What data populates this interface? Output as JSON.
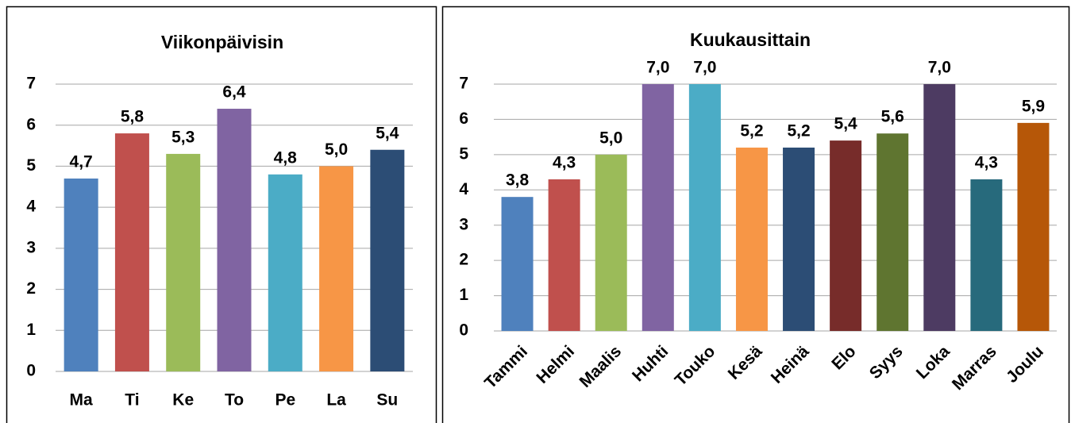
{
  "chart_data": [
    {
      "type": "bar",
      "title": "Viikonpäivisin",
      "categories": [
        "Ma",
        "Ti",
        "Ke",
        "To",
        "Pe",
        "La",
        "Su"
      ],
      "values": [
        4.7,
        5.8,
        5.3,
        6.4,
        4.8,
        5.0,
        5.4
      ],
      "value_labels": [
        "4,7",
        "5,8",
        "5,3",
        "6,4",
        "4,8",
        "5,0",
        "5,4"
      ],
      "colors": [
        "#4f81bd",
        "#c0504d",
        "#9bbb59",
        "#8064a2",
        "#4bacc6",
        "#f79646",
        "#2c4d75"
      ],
      "ylim": [
        0,
        7
      ],
      "yticks": [
        0,
        1,
        2,
        3,
        4,
        5,
        6,
        7
      ],
      "grid": true
    },
    {
      "type": "bar",
      "title": "Kuukausittain",
      "categories": [
        "Tammi",
        "Helmi",
        "Maalis",
        "Huhti",
        "Touko",
        "Kesä",
        "Heinä",
        "Elo",
        "Syys",
        "Loka",
        "Marras",
        "Joulu"
      ],
      "values": [
        3.8,
        4.3,
        5.0,
        7.0,
        7.0,
        5.2,
        5.2,
        5.4,
        5.6,
        7.0,
        4.3,
        5.9
      ],
      "value_labels": [
        "3,8",
        "4,3",
        "5,0",
        "7,0",
        "7,0",
        "5,2",
        "5,2",
        "5,4",
        "5,6",
        "7,0",
        "4,3",
        "5,9"
      ],
      "colors": [
        "#4f81bd",
        "#c0504d",
        "#9bbb59",
        "#8064a2",
        "#4bacc6",
        "#f79646",
        "#2c4d75",
        "#772c2a",
        "#5f7530",
        "#4d3b62",
        "#276a7c",
        "#b65708"
      ],
      "ylim": [
        0,
        7
      ],
      "yticks": [
        0,
        1,
        2,
        3,
        4,
        5,
        6,
        7
      ],
      "grid": true
    }
  ]
}
